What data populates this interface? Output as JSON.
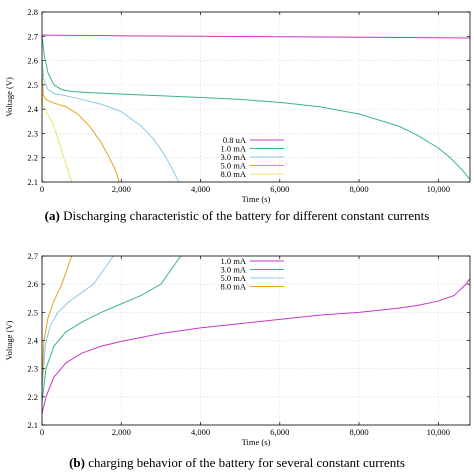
{
  "captions": [
    {
      "label": "(a)",
      "text": "Discharging characteristic of the battery for different constant currents"
    },
    {
      "label": "(b)",
      "text": "charging behavior of the battery for several constant currents"
    }
  ],
  "colors": {
    "0.8 uA": "#c838c8",
    "1.0 mA": "#3cb484",
    "3.0 mA": "#8cc8e8",
    "5.0 mA": "#e8a020",
    "8.0 mA": "#f0e070"
  },
  "chart_data": [
    {
      "type": "line",
      "xlabel": "Time (s)",
      "ylabel": "Voltage (V)",
      "xlim": [
        0,
        10800
      ],
      "ylim": [
        2.1,
        2.8
      ],
      "xticks": [
        0,
        2000,
        4000,
        6000,
        8000,
        10000
      ],
      "xtick_labels": [
        "0",
        "2,000",
        "4,000",
        "6,000",
        "8,000",
        "10,000"
      ],
      "yticks": [
        2.1,
        2.2,
        2.3,
        2.4,
        2.5,
        2.6,
        2.7,
        2.8
      ],
      "ytick_labels": [
        "2.1",
        "2.2",
        "2.3",
        "2.4",
        "2.5",
        "2.6",
        "2.7",
        "2.8"
      ],
      "grid": true,
      "legend_position": "bottom-center",
      "series": [
        {
          "name": "0.8 uA",
          "color": "#c838c8",
          "x": [
            0,
            500,
            2000,
            4000,
            6000,
            8000,
            10000,
            10800
          ],
          "y": [
            2.705,
            2.704,
            2.702,
            2.7,
            2.698,
            2.696,
            2.694,
            2.693
          ]
        },
        {
          "name": "1.0 mA",
          "color": "#3cb484",
          "x": [
            0,
            60,
            150,
            300,
            500,
            800,
            1200,
            2000,
            3000,
            4000,
            5000,
            6000,
            7000,
            8000,
            9000,
            9500,
            10000,
            10300,
            10600,
            10800
          ],
          "y": [
            2.7,
            2.62,
            2.55,
            2.5,
            2.48,
            2.472,
            2.468,
            2.462,
            2.455,
            2.448,
            2.44,
            2.428,
            2.41,
            2.38,
            2.33,
            2.29,
            2.24,
            2.2,
            2.15,
            2.11
          ]
        },
        {
          "name": "3.0 mA",
          "color": "#8cc8e8",
          "x": [
            0,
            50,
            150,
            300,
            600,
            1000,
            1500,
            2000,
            2500,
            2800,
            3100,
            3300,
            3450
          ],
          "y": [
            2.6,
            2.52,
            2.48,
            2.465,
            2.455,
            2.44,
            2.42,
            2.39,
            2.33,
            2.28,
            2.21,
            2.15,
            2.1
          ]
        },
        {
          "name": "5.0 mA",
          "color": "#e8a020",
          "x": [
            0,
            30,
            100,
            300,
            600,
            900,
            1200,
            1500,
            1700,
            1850,
            1950
          ],
          "y": [
            2.55,
            2.46,
            2.44,
            2.425,
            2.41,
            2.38,
            2.33,
            2.26,
            2.2,
            2.15,
            2.1
          ]
        },
        {
          "name": "8.0 mA",
          "color": "#f0e070",
          "x": [
            0,
            20,
            100,
            250,
            400,
            550,
            650,
            750
          ],
          "y": [
            2.52,
            2.42,
            2.39,
            2.35,
            2.28,
            2.2,
            2.15,
            2.1
          ]
        }
      ]
    },
    {
      "type": "line",
      "xlabel": "Time (s)",
      "ylabel": "Voltage (V)",
      "xlim": [
        0,
        10800
      ],
      "ylim": [
        2.1,
        2.7
      ],
      "xticks": [
        0,
        2000,
        4000,
        6000,
        8000,
        10000
      ],
      "xtick_labels": [
        "0",
        "2,000",
        "4,000",
        "6,000",
        "8,000",
        "10,000"
      ],
      "yticks": [
        2.1,
        2.2,
        2.3,
        2.4,
        2.5,
        2.6,
        2.7
      ],
      "ytick_labels": [
        "2.1",
        "2.2",
        "2.3",
        "2.4",
        "2.5",
        "2.6",
        "2.7"
      ],
      "grid": true,
      "legend_position": "top-center",
      "series": [
        {
          "name": "1.0 mA",
          "color": "#c838c8",
          "x": [
            0,
            100,
            300,
            600,
            1000,
            1500,
            2000,
            3000,
            4000,
            5000,
            6000,
            7000,
            8000,
            9000,
            9500,
            10000,
            10400,
            10700,
            10800
          ],
          "y": [
            2.14,
            2.2,
            2.27,
            2.32,
            2.355,
            2.38,
            2.397,
            2.425,
            2.445,
            2.46,
            2.475,
            2.49,
            2.5,
            2.515,
            2.525,
            2.54,
            2.56,
            2.6,
            2.62
          ]
        },
        {
          "name": "3.0 mA",
          "color": "#3cb484",
          "x": [
            0,
            100,
            300,
            600,
            1000,
            1500,
            2000,
            2500,
            3000,
            3300,
            3500
          ],
          "y": [
            2.18,
            2.3,
            2.38,
            2.43,
            2.465,
            2.5,
            2.53,
            2.56,
            2.6,
            2.66,
            2.7
          ]
        },
        {
          "name": "5.0 mA",
          "color": "#8cc8e8",
          "x": [
            0,
            80,
            200,
            400,
            700,
            1000,
            1300,
            1600,
            1800
          ],
          "y": [
            2.22,
            2.38,
            2.45,
            2.5,
            2.54,
            2.57,
            2.6,
            2.66,
            2.7
          ]
        },
        {
          "name": "8.0 mA",
          "color": "#e8a020",
          "x": [
            0,
            50,
            150,
            300,
            500,
            650,
            750
          ],
          "y": [
            2.25,
            2.4,
            2.48,
            2.54,
            2.6,
            2.66,
            2.7
          ]
        }
      ]
    }
  ]
}
